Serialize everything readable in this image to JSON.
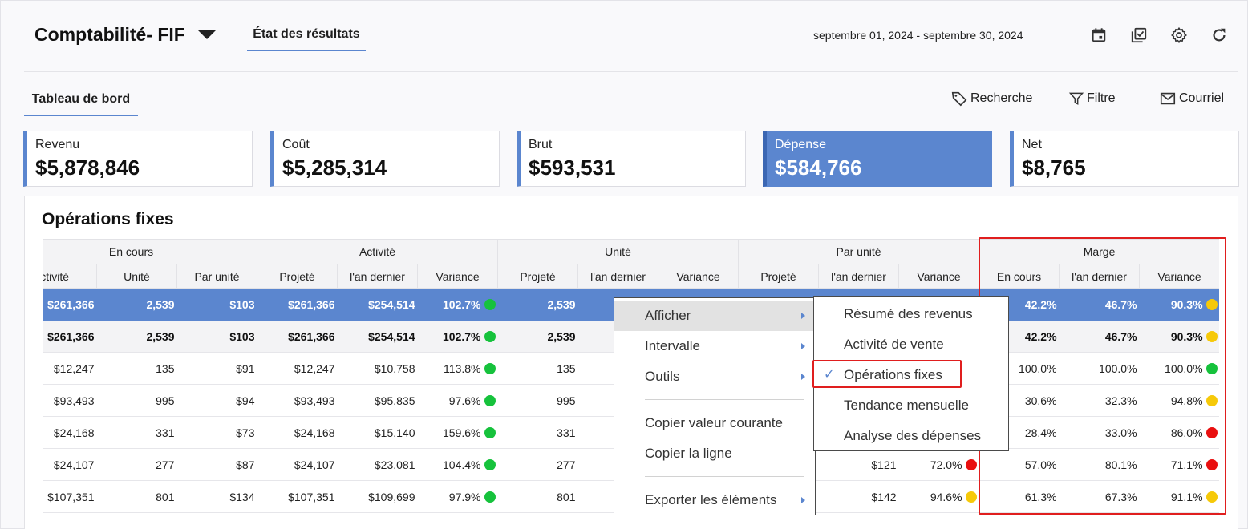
{
  "header": {
    "app_title": "Comptabilité- FIF",
    "tab": "État des résultats",
    "date_range": "septembre 01, 2024 - septembre 30, 2024",
    "icons": [
      "calendar-icon",
      "checklist-icon",
      "gear-icon",
      "refresh-icon"
    ]
  },
  "toolbar": {
    "dashboard_tab": "Tableau de bord",
    "search_label": "Recherche",
    "filter_label": "Filtre",
    "email_label": "Courriel"
  },
  "kpis": [
    {
      "label": "Revenu",
      "value": "$5,878,846"
    },
    {
      "label": "Coût",
      "value": "$5,285,314"
    },
    {
      "label": "Brut",
      "value": "$593,531"
    },
    {
      "label": "Dépense",
      "value": "$584,766"
    },
    {
      "label": "Net",
      "value": "$8,765"
    }
  ],
  "kpi_active": "Dépense",
  "section": {
    "title": "Opérations fixes",
    "groups": [
      "En cours",
      "Activité",
      "Unité",
      "Par unité",
      "Marge"
    ],
    "columns": [
      "Activité",
      "Unité",
      "Par unité",
      "Projeté",
      "l'an dernier",
      "Variance",
      "Projeté",
      "l'an dernier",
      "Variance",
      "Projeté",
      "l'an dernier",
      "Variance",
      "En cours",
      "l'an dernier",
      "Variance"
    ],
    "rows": [
      {
        "c": [
          "$261,366",
          "2,539",
          "$103",
          "$261,366",
          "$254,514",
          "102.7%",
          "2,539",
          "",
          "",
          "",
          "",
          "",
          "42.2%",
          "46.7%",
          "90.3%"
        ],
        "d1": "g",
        "d2": "",
        "d3": "y"
      },
      {
        "c": [
          "$261,366",
          "2,539",
          "$103",
          "$261,366",
          "$254,514",
          "102.7%",
          "2,539",
          "",
          "",
          "",
          "",
          "",
          "42.2%",
          "46.7%",
          "90.3%"
        ],
        "d1": "g",
        "d2": "",
        "d3": "y"
      },
      {
        "c": [
          "$12,247",
          "135",
          "$91",
          "$12,247",
          "$10,758",
          "113.8%",
          "135",
          "",
          "",
          "",
          "",
          "",
          "100.0%",
          "100.0%",
          "100.0%"
        ],
        "d1": "g",
        "d2": "",
        "d3": "g"
      },
      {
        "c": [
          "$93,493",
          "995",
          "$94",
          "$93,493",
          "$95,835",
          "97.6%",
          "995",
          "",
          "",
          "",
          "",
          "",
          "30.6%",
          "32.3%",
          "94.8%"
        ],
        "d1": "g",
        "d2": "",
        "d3": "y"
      },
      {
        "c": [
          "$24,168",
          "331",
          "$73",
          "$24,168",
          "$15,140",
          "159.6%",
          "331",
          "",
          "",
          "",
          "",
          "",
          "28.4%",
          "33.0%",
          "86.0%"
        ],
        "d1": "g",
        "d2": "",
        "d3": "r"
      },
      {
        "c": [
          "$24,107",
          "277",
          "$87",
          "$24,107",
          "$23,081",
          "104.4%",
          "277",
          "",
          "",
          "",
          "$121",
          "72.0%",
          "57.0%",
          "80.1%",
          "71.1%"
        ],
        "d1": "g",
        "d2": "r",
        "d3": "r"
      },
      {
        "c": [
          "$107,351",
          "801",
          "$134",
          "$107,351",
          "$109,699",
          "97.9%",
          "801",
          "",
          "",
          "",
          "$142",
          "94.6%",
          "61.3%",
          "67.3%",
          "91.1%"
        ],
        "d1": "g",
        "d2": "y",
        "d3": "y"
      }
    ]
  },
  "context_menu": {
    "items": [
      "Afficher",
      "Intervalle",
      "Outils",
      "Copier valeur courante",
      "Copier la ligne",
      "Exporter les éléments"
    ]
  },
  "submenu": {
    "items": [
      "Résumé des revenus",
      "Activité de vente",
      "Opérations fixes",
      "Tendance mensuelle",
      "Analyse des dépenses"
    ],
    "checked": "Opérations fixes",
    "check_mark": "✓"
  },
  "colors": {
    "accent": "#5b86cf",
    "highlight_box": "#e01e1e",
    "green": "#16c23c",
    "yellow": "#f6c909",
    "red": "#e90f0f"
  }
}
